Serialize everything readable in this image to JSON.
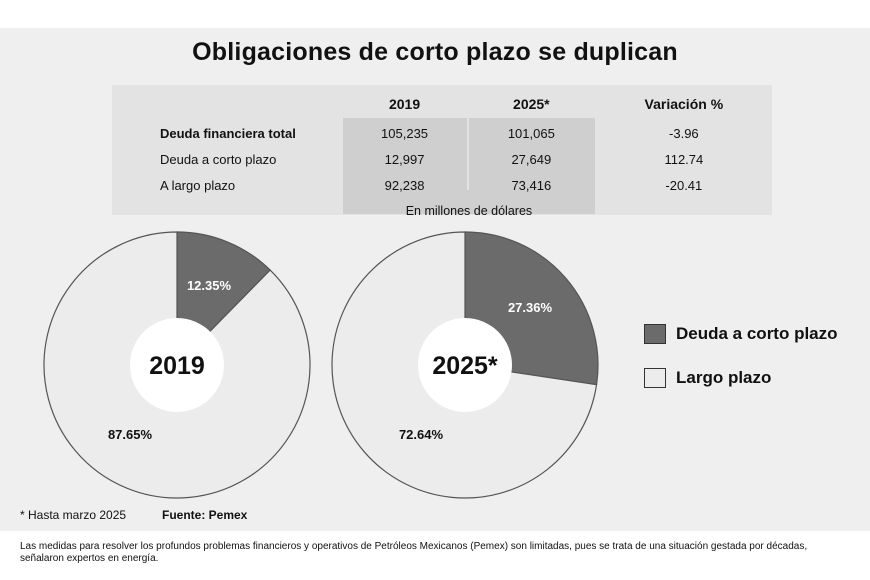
{
  "title": "Obligaciones de corto plazo se duplican",
  "table": {
    "headers": [
      "",
      "2019",
      "2025*",
      "Variación %"
    ],
    "rows": [
      {
        "label": "Deuda financiera total",
        "v2019": "105,235",
        "v2025": "101,065",
        "var": "-3.96",
        "bold": true
      },
      {
        "label": "Deuda a corto plazo",
        "v2019": "12,997",
        "v2025": "27,649",
        "var": "112.74",
        "bold": false
      },
      {
        "label": "A largo plazo",
        "v2019": "92,238",
        "v2025": "73,416",
        "var": "-20.41",
        "bold": false
      }
    ],
    "unit_note": "En millones de dólares"
  },
  "chart_data": [
    {
      "type": "pie",
      "center_label": "2019",
      "categories": [
        "Deuda a corto plazo",
        "Largo plazo"
      ],
      "values": [
        12.35,
        87.65
      ],
      "data_labels": [
        "12.35%",
        "87.65%"
      ],
      "colors": [
        "#6b6b6b",
        "#ececec"
      ]
    },
    {
      "type": "pie",
      "center_label": "2025*",
      "categories": [
        "Deuda a corto plazo",
        "Largo plazo"
      ],
      "values": [
        27.36,
        72.64
      ],
      "data_labels": [
        "27.36%",
        "72.64%"
      ],
      "colors": [
        "#6b6b6b",
        "#ececec"
      ]
    }
  ],
  "legend": [
    {
      "label": "Deuda a corto plazo",
      "color": "#6b6b6b"
    },
    {
      "label": "Largo plazo",
      "color": "#ececec"
    }
  ],
  "footnotes": {
    "asterisk": "* Hasta marzo 2025",
    "source": "Fuente: Pemex"
  },
  "caption": "Las medidas para resolver los profundos problemas financieros y operativos de Petróleos Mexicanos (Pemex) son limitadas, pues se trata de una situación gestada por décadas, señalaron expertos en energía."
}
